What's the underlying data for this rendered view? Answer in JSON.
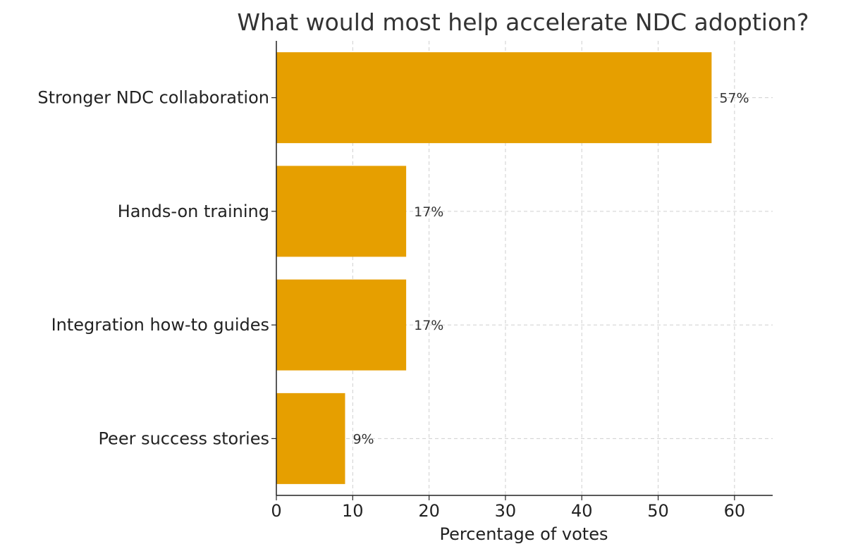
{
  "chart_data": {
    "type": "bar",
    "orientation": "horizontal",
    "title": "What would most help accelerate NDC adoption?",
    "xlabel": "Percentage of votes",
    "ylabel": "",
    "categories": [
      "Stronger NDC collaboration",
      "Hands-on training",
      "Integration how-to guides",
      "Peer success stories"
    ],
    "values": [
      57,
      17,
      17,
      9
    ],
    "data_labels": [
      "57%",
      "17%",
      "17%",
      "9%"
    ],
    "xlim": [
      0,
      65
    ],
    "xticks": [
      0,
      10,
      20,
      30,
      40,
      50,
      60
    ],
    "grid": true,
    "bar_color": "#E69F00"
  }
}
